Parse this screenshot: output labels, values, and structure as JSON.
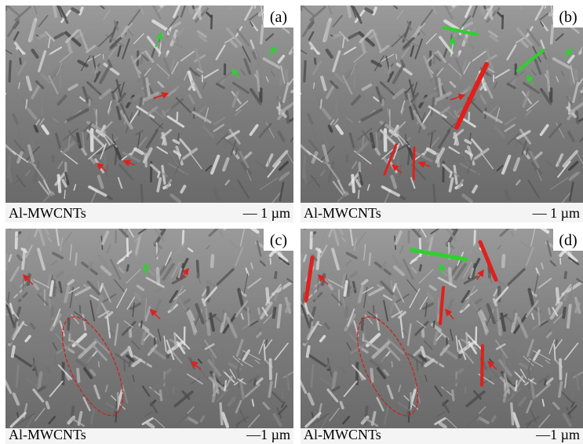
{
  "panels": [
    {
      "label": "(a)",
      "caption": "Al-MWCNTs",
      "scale": "— 1 µm"
    },
    {
      "label": "(b)",
      "caption": "Al-MWCNTs",
      "scale": "— 1 µm"
    },
    {
      "label": "(c)",
      "caption": "Al-MWCNTs",
      "scale": "—1 µm"
    },
    {
      "label": "(d)",
      "caption": "Al-MWCNTs",
      "scale": "—1 µm"
    }
  ]
}
